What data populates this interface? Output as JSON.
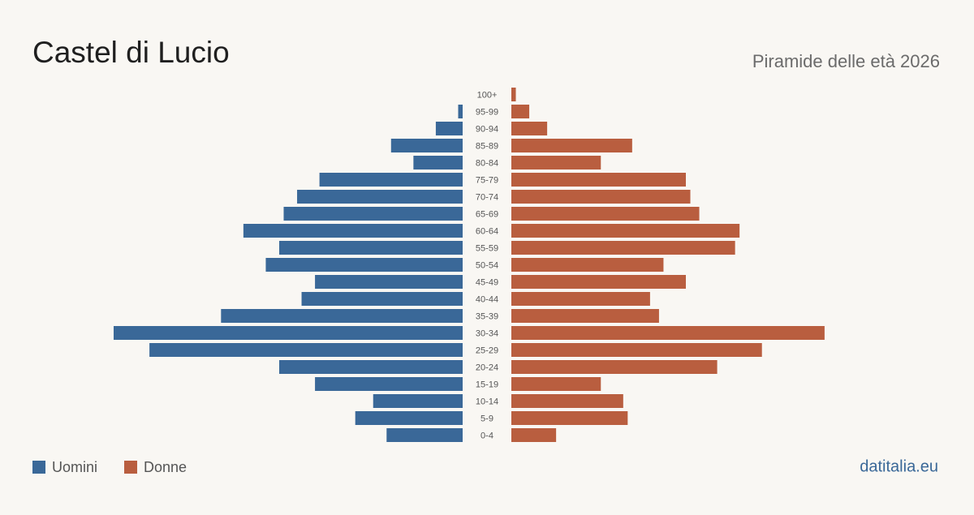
{
  "chart_data": {
    "type": "pyramid",
    "title": "Castel di Lucio",
    "subtitle": "Piramide delle età 2026",
    "source": "datitalia.eu",
    "categories": [
      "100+",
      "95-99",
      "90-94",
      "85-89",
      "80-84",
      "75-79",
      "70-74",
      "65-69",
      "60-64",
      "55-59",
      "50-54",
      "45-49",
      "40-44",
      "35-39",
      "30-34",
      "25-29",
      "20-24",
      "15-19",
      "10-14",
      "5-9",
      "0-4"
    ],
    "series": [
      {
        "name": "Uomini",
        "color": "#3a6898",
        "values": [
          0,
          1,
          6,
          16,
          11,
          32,
          37,
          40,
          49,
          41,
          44,
          33,
          36,
          54,
          78,
          70,
          41,
          33,
          20,
          24,
          17
        ]
      },
      {
        "name": "Donne",
        "color": "#b95e3f",
        "values": [
          1,
          4,
          8,
          27,
          20,
          39,
          40,
          42,
          51,
          50,
          34,
          39,
          31,
          33,
          70,
          56,
          46,
          20,
          25,
          26,
          10
        ]
      }
    ]
  }
}
